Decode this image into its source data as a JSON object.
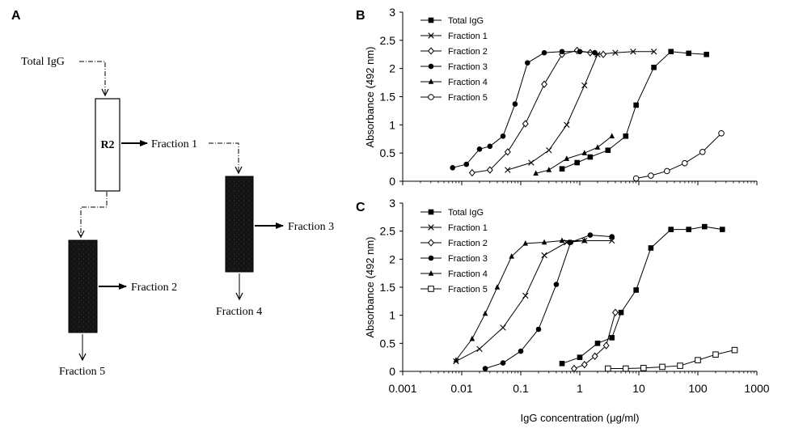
{
  "panels": {
    "a": {
      "letter": "A",
      "total_label": "Total IgG",
      "column_label": "R2",
      "out_f1": "Fraction 1",
      "out_f2": "Fraction 2",
      "out_f3": "Fraction 3",
      "out_f4": "Fraction 4",
      "out_f5": "Fraction 5"
    },
    "b": {
      "letter": "B"
    },
    "c": {
      "letter": "C"
    }
  },
  "chart_data": [
    {
      "panel": "B",
      "type": "line",
      "xscale": "log",
      "xlim": [
        0.001,
        1000
      ],
      "ylim": [
        0,
        3
      ],
      "yticks": [
        "0",
        "0.5",
        "1",
        "1.5",
        "2",
        "2.5",
        "3"
      ],
      "ylabel": "Absorbance (492 nm)",
      "legend_position": "top-left",
      "series": [
        {
          "name": "Total IgG",
          "marker": "square-filled",
          "points": [
            [
              0.5,
              0.22
            ],
            [
              0.9,
              0.33
            ],
            [
              1.5,
              0.43
            ],
            [
              3,
              0.55
            ],
            [
              6,
              0.8
            ],
            [
              9,
              1.35
            ],
            [
              18,
              2.02
            ],
            [
              35,
              2.3
            ],
            [
              70,
              2.27
            ],
            [
              140,
              2.25
            ]
          ]
        },
        {
          "name": "Fraction 1",
          "marker": "cross",
          "points": [
            [
              0.06,
              0.2
            ],
            [
              0.15,
              0.33
            ],
            [
              0.3,
              0.55
            ],
            [
              0.6,
              1.0
            ],
            [
              1.2,
              1.7
            ],
            [
              2,
              2.25
            ],
            [
              4,
              2.28
            ],
            [
              8,
              2.3
            ],
            [
              18,
              2.3
            ]
          ]
        },
        {
          "name": "Fraction 2",
          "marker": "diamond-open",
          "points": [
            [
              0.015,
              0.15
            ],
            [
              0.03,
              0.2
            ],
            [
              0.06,
              0.52
            ],
            [
              0.12,
              1.02
            ],
            [
              0.25,
              1.72
            ],
            [
              0.5,
              2.25
            ],
            [
              0.9,
              2.32
            ],
            [
              1.5,
              2.28
            ],
            [
              2.5,
              2.25
            ]
          ]
        },
        {
          "name": "Fraction 3",
          "marker": "circle-filled",
          "points": [
            [
              0.007,
              0.24
            ],
            [
              0.012,
              0.3
            ],
            [
              0.02,
              0.57
            ],
            [
              0.03,
              0.62
            ],
            [
              0.05,
              0.8
            ],
            [
              0.08,
              1.37
            ],
            [
              0.13,
              2.1
            ],
            [
              0.25,
              2.28
            ],
            [
              0.5,
              2.3
            ],
            [
              1,
              2.3
            ],
            [
              1.8,
              2.28
            ]
          ]
        },
        {
          "name": "Fraction 4",
          "marker": "triangle-filled",
          "points": [
            [
              0.18,
              0.14
            ],
            [
              0.3,
              0.2
            ],
            [
              0.6,
              0.4
            ],
            [
              1.2,
              0.5
            ],
            [
              2,
              0.6
            ],
            [
              3.5,
              0.8
            ]
          ]
        },
        {
          "name": "Fraction 5",
          "marker": "circle-open",
          "points": [
            [
              9,
              0.05
            ],
            [
              16,
              0.1
            ],
            [
              30,
              0.18
            ],
            [
              60,
              0.32
            ],
            [
              120,
              0.52
            ],
            [
              250,
              0.85
            ]
          ]
        }
      ]
    },
    {
      "panel": "C",
      "type": "line",
      "xscale": "log",
      "xlim": [
        0.001,
        1000
      ],
      "ylim": [
        0,
        3
      ],
      "xticks": [
        "0.001",
        "0.01",
        "0.1",
        "1",
        "10",
        "100",
        "1000"
      ],
      "yticks": [
        "0",
        "0.5",
        "1",
        "1.5",
        "2",
        "2.5",
        "3"
      ],
      "xlabel": "IgG concentration (μg/ml)",
      "ylabel": "Absorbance (492 nm)",
      "legend_position": "top-left",
      "series": [
        {
          "name": "Total IgG",
          "marker": "square-filled",
          "points": [
            [
              0.5,
              0.14
            ],
            [
              1,
              0.25
            ],
            [
              2,
              0.5
            ],
            [
              3.5,
              0.6
            ],
            [
              5,
              1.05
            ],
            [
              9,
              1.45
            ],
            [
              16,
              2.2
            ],
            [
              35,
              2.53
            ],
            [
              70,
              2.53
            ],
            [
              130,
              2.58
            ],
            [
              260,
              2.53
            ]
          ]
        },
        {
          "name": "Fraction 1",
          "marker": "cross",
          "points": [
            [
              0.008,
              0.18
            ],
            [
              0.02,
              0.4
            ],
            [
              0.05,
              0.78
            ],
            [
              0.12,
              1.35
            ],
            [
              0.25,
              2.07
            ],
            [
              0.6,
              2.3
            ],
            [
              1.2,
              2.33
            ],
            [
              3.5,
              2.33
            ]
          ]
        },
        {
          "name": "Fraction 2",
          "marker": "diamond-open",
          "points": [
            [
              0.8,
              0.05
            ],
            [
              1.2,
              0.12
            ],
            [
              1.8,
              0.27
            ],
            [
              2.8,
              0.46
            ],
            [
              4,
              1.05
            ]
          ]
        },
        {
          "name": "Fraction 3",
          "marker": "circle-filled",
          "points": [
            [
              0.025,
              0.05
            ],
            [
              0.05,
              0.15
            ],
            [
              0.1,
              0.36
            ],
            [
              0.2,
              0.75
            ],
            [
              0.4,
              1.55
            ],
            [
              0.7,
              2.3
            ],
            [
              1.5,
              2.43
            ],
            [
              3.5,
              2.4
            ]
          ]
        },
        {
          "name": "Fraction 4",
          "marker": "triangle-filled",
          "points": [
            [
              0.008,
              0.2
            ],
            [
              0.015,
              0.58
            ],
            [
              0.025,
              1.03
            ],
            [
              0.04,
              1.5
            ],
            [
              0.07,
              2.05
            ],
            [
              0.12,
              2.28
            ],
            [
              0.25,
              2.3
            ],
            [
              0.5,
              2.33
            ],
            [
              1.2,
              2.33
            ]
          ]
        },
        {
          "name": "Fraction 5",
          "marker": "square-open",
          "points": [
            [
              3,
              0.05
            ],
            [
              6,
              0.05
            ],
            [
              12,
              0.06
            ],
            [
              25,
              0.08
            ],
            [
              50,
              0.1
            ],
            [
              100,
              0.2
            ],
            [
              200,
              0.3
            ],
            [
              420,
              0.38
            ]
          ]
        }
      ]
    }
  ]
}
